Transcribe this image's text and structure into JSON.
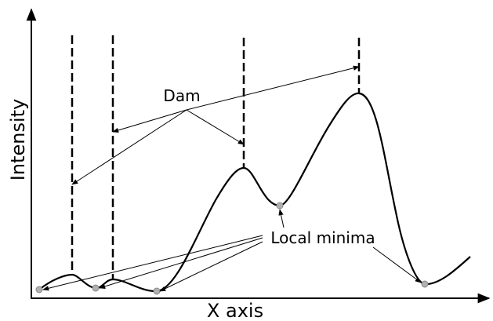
{
  "axes": {
    "x_label": "X axis",
    "y_label": "Intensity"
  },
  "annotations": {
    "dam_label": "Dam",
    "local_minima_label": "Local minima"
  },
  "colors": {
    "curve": "#000000",
    "dam_line": "#000000",
    "minima_marker": "#b0b0b0"
  }
}
